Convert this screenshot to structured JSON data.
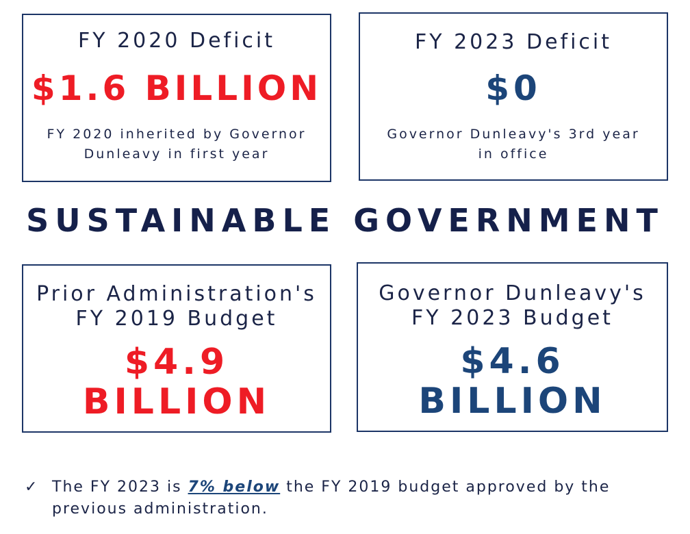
{
  "cards": {
    "fy2020_deficit": {
      "label": "FY 2020 Deficit",
      "value": "$1.6 BILLION",
      "subtitle_line1": "FY 2020 inherited by Governor",
      "subtitle_line2": "Dunleavy in first year"
    },
    "fy2023_deficit": {
      "label": "FY 2023 Deficit",
      "value": "$0",
      "subtitle_line1": "Governor Dunleavy's 3rd year",
      "subtitle_line2": "in office"
    },
    "fy2019_budget": {
      "label_line1": "Prior Administration's",
      "label_line2": "FY 2019 Budget",
      "value_line1": "$4.9",
      "value_line2": "BILLION"
    },
    "fy2023_budget": {
      "label_line1": "Governor Dunleavy's",
      "label_line2": "FY 2023 Budget",
      "value_line1": "$4.6",
      "value_line2": "BILLION"
    }
  },
  "headline": "SUSTAINABLE GOVERNMENT",
  "note": {
    "icon": "check-icon",
    "text_before": "The FY 2023 is ",
    "highlight": "7% below",
    "text_after": " the FY 2019 budget approved by the previous administration."
  },
  "colors": {
    "deficit_red": "#ee1c25",
    "accent_blue": "#1c4579",
    "text_navy": "#1b2447",
    "border_navy": "#1c3566"
  }
}
